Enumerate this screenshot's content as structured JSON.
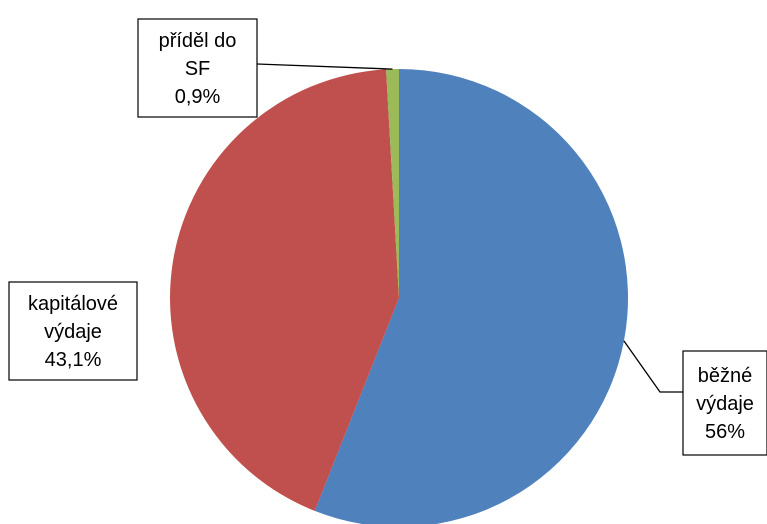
{
  "chart_data": {
    "type": "pie",
    "title": "",
    "slices": [
      {
        "name": "běžné výdaje",
        "label_lines": [
          "běžné",
          "výdaje",
          "56%"
        ],
        "value": 56.0,
        "color": "#4F81BD"
      },
      {
        "name": "kapitálové výdaje",
        "label_lines": [
          "kapitálové",
          "výdaje",
          "43,1%"
        ],
        "value": 43.1,
        "color": "#C0504D"
      },
      {
        "name": "příděl do SF",
        "label_lines": [
          "příděl do",
          "SF",
          "0,9%"
        ],
        "value": 0.9,
        "color": "#9BBB59"
      }
    ],
    "start_angle": "12 o'clock",
    "direction": "clockwise",
    "legend": "none"
  }
}
